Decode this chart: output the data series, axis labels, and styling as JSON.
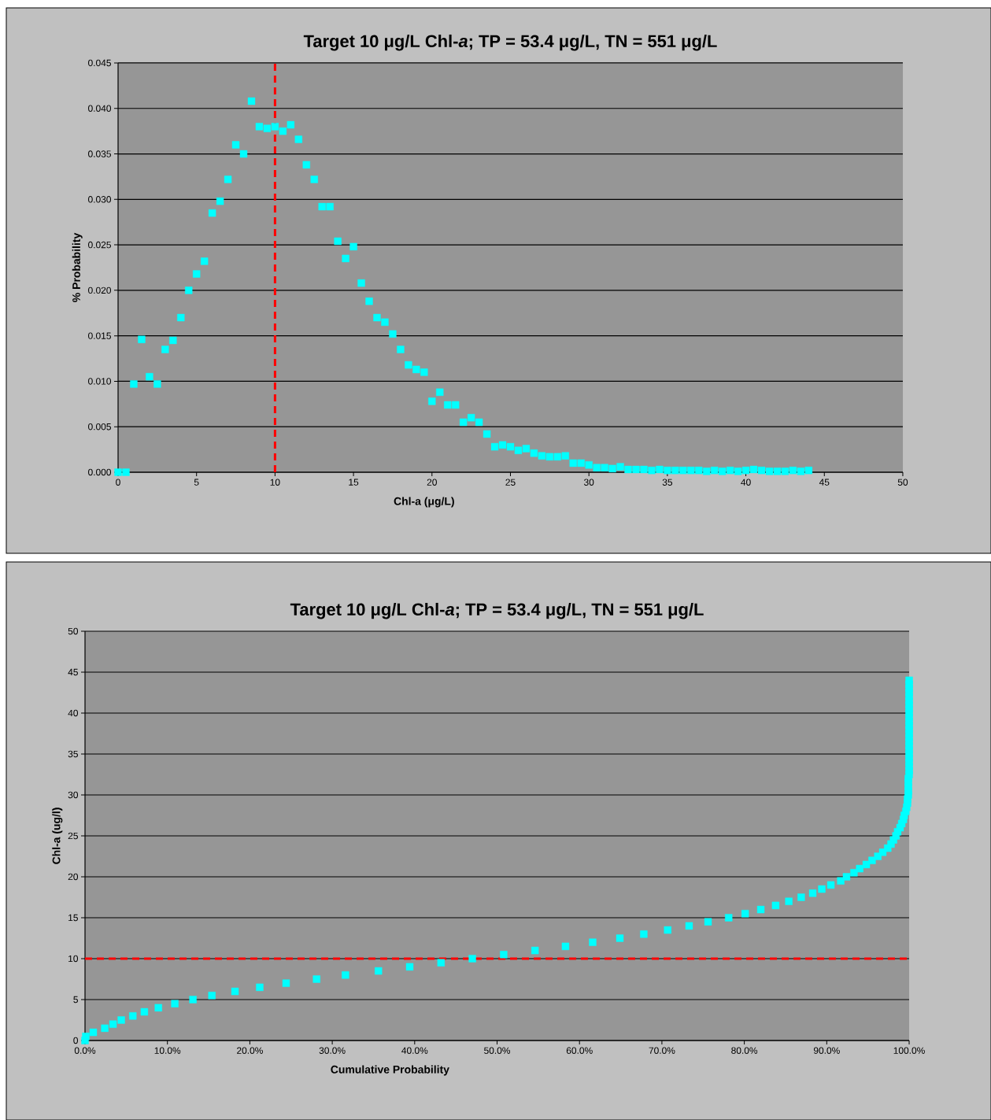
{
  "chart_data": [
    {
      "type": "scatter",
      "title": "Target 10 μg/L Chl-*a*; TP = 53.4 μg/L, TN = 551 μg/L",
      "xlabel": "Chl-a (μg/L)",
      "ylabel": "% Probability",
      "xlim": [
        0,
        50
      ],
      "xticks": [
        0,
        5,
        10,
        15,
        20,
        25,
        30,
        35,
        40,
        45,
        50
      ],
      "ylim": [
        0,
        0.045
      ],
      "yticks": [
        {
          "value": 0,
          "label": "0.000"
        },
        {
          "value": 0.005,
          "label": "0.005"
        },
        {
          "value": 0.01,
          "label": "0.010"
        },
        {
          "value": 0.015,
          "label": "0.015"
        },
        {
          "value": 0.02,
          "label": "0.020"
        },
        {
          "value": 0.025,
          "label": "0.025"
        },
        {
          "value": 0.03,
          "label": "0.030"
        },
        {
          "value": 0.035,
          "label": "0.035"
        },
        {
          "value": 0.04,
          "label": "0.040"
        },
        {
          "value": 0.045,
          "label": "0.045"
        }
      ],
      "grid": "y",
      "marker": "square",
      "ref_lines": [
        {
          "axis": "x",
          "value": 10,
          "color": "#ff0000",
          "line_style": "dashed"
        }
      ],
      "series": [
        {
          "color": "#00ffff",
          "x": [
            0,
            0.5,
            1,
            1.5,
            2,
            2.5,
            3,
            3.5,
            4,
            4.5,
            5,
            5.5,
            6,
            6.5,
            7,
            7.5,
            8,
            8.5,
            9,
            9.5,
            10,
            10.5,
            11,
            11.5,
            12,
            12.5,
            13,
            13.5,
            14,
            14.5,
            15,
            15.5,
            16,
            16.5,
            17,
            17.5,
            18,
            18.5,
            19,
            19.5,
            20,
            20.5,
            21,
            21.5,
            22,
            22.5,
            23,
            23.5,
            24,
            24.5,
            25,
            25.5,
            26,
            26.5,
            27,
            27.5,
            28,
            28.5,
            29,
            29.5,
            30,
            30.5,
            31,
            31.5,
            32,
            32.5,
            33,
            33.5,
            34,
            34.5,
            35,
            35.5,
            36,
            36.5,
            37,
            37.5,
            38,
            38.5,
            39,
            39.5,
            40,
            40.5,
            41,
            41.5,
            42,
            42.5,
            43,
            43.5,
            44
          ],
          "values": [
            0,
            0,
            0.0097,
            0.0146,
            0.0105,
            0.0097,
            0.0135,
            0.0145,
            0.017,
            0.02,
            0.0218,
            0.0232,
            0.0285,
            0.0298,
            0.0322,
            0.036,
            0.035,
            0.0408,
            0.038,
            0.0378,
            0.038,
            0.0375,
            0.0382,
            0.0366,
            0.0338,
            0.0322,
            0.0292,
            0.0292,
            0.0254,
            0.0235,
            0.0248,
            0.0208,
            0.0188,
            0.017,
            0.0165,
            0.0152,
            0.0135,
            0.0118,
            0.0113,
            0.011,
            0.0078,
            0.0088,
            0.0074,
            0.0074,
            0.0055,
            0.006,
            0.0055,
            0.0042,
            0.0028,
            0.003,
            0.0028,
            0.0024,
            0.0026,
            0.0021,
            0.0018,
            0.0017,
            0.0017,
            0.0018,
            0.001,
            0.001,
            0.0008,
            0.0005,
            0.0005,
            0.0004,
            0.0006,
            0.0003,
            0.0003,
            0.0003,
            0.0002,
            0.0003,
            0.0002,
            0.0002,
            0.0002,
            0.0002,
            0.0002,
            0.0001,
            0.0002,
            0.0001,
            0.0002,
            0.0001,
            0.0002,
            0.0003,
            0.0002,
            0.0001,
            0.0001,
            0.0001,
            0.0002,
            0.0001,
            0.0002
          ]
        }
      ]
    },
    {
      "type": "scatter",
      "title": "Target 10 μg/L Chl-*a*; TP = 53.4 μg/L, TN = 551 μg/L",
      "xlabel": "Cumulative Probability",
      "ylabel": "Chl-a (ug/l)",
      "xlim": [
        0,
        100
      ],
      "xticks": [
        {
          "value": 0,
          "label": "0.0%"
        },
        {
          "value": 10,
          "label": "10.0%"
        },
        {
          "value": 20,
          "label": "20.0%"
        },
        {
          "value": 30,
          "label": "30.0%"
        },
        {
          "value": 40,
          "label": "40.0%"
        },
        {
          "value": 50,
          "label": "50.0%"
        },
        {
          "value": 60,
          "label": "60.0%"
        },
        {
          "value": 70,
          "label": "70.0%"
        },
        {
          "value": 80,
          "label": "80.0%"
        },
        {
          "value": 90,
          "label": "90.0%"
        },
        {
          "value": 100,
          "label": "100.0%"
        }
      ],
      "ylim": [
        0,
        50
      ],
      "yticks": [
        0,
        5,
        10,
        15,
        20,
        25,
        30,
        35,
        40,
        45,
        50
      ],
      "grid": "y",
      "marker": "square",
      "ref_lines": [
        {
          "axis": "y",
          "value": 10,
          "color": "#ff0000",
          "line_style": "dashed"
        }
      ],
      "series": [
        {
          "color": "#00ffff",
          "x": [
            0,
            0.1,
            1.0,
            2.4,
            3.4,
            4.4,
            5.8,
            7.2,
            8.9,
            10.9,
            13.1,
            15.4,
            18.2,
            21.2,
            24.4,
            28.1,
            31.6,
            35.6,
            39.4,
            43.2,
            47.0,
            50.8,
            54.6,
            58.3,
            61.6,
            64.9,
            67.8,
            70.7,
            73.3,
            75.6,
            78.1,
            80.1,
            82.0,
            83.8,
            85.4,
            86.9,
            88.3,
            89.4,
            90.5,
            91.7,
            92.4,
            93.3,
            94.0,
            94.8,
            95.5,
            96.2,
            96.8,
            97.4,
            97.8,
            98.1,
            98.4,
            98.6,
            98.9,
            99.1,
            99.3,
            99.4,
            99.6,
            99.7,
            99.8,
            99.8,
            99.9,
            99.9,
            99.9,
            99.9,
            99.9,
            100,
            100,
            100,
            100,
            100,
            100,
            100,
            100,
            100,
            100,
            100,
            100,
            100,
            100,
            100,
            100,
            100,
            100,
            100,
            100,
            100,
            100,
            100,
            100
          ],
          "values": [
            0,
            0.5,
            1,
            1.5,
            2,
            2.5,
            3,
            3.5,
            4,
            4.5,
            5,
            5.5,
            6,
            6.5,
            7,
            7.5,
            8,
            8.5,
            9,
            9.5,
            10,
            10.5,
            11,
            11.5,
            12,
            12.5,
            13,
            13.5,
            14,
            14.5,
            15,
            15.5,
            16,
            16.5,
            17,
            17.5,
            18,
            18.5,
            19,
            19.5,
            20,
            20.5,
            21,
            21.5,
            22,
            22.5,
            23,
            23.5,
            24,
            24.5,
            25,
            25.5,
            26,
            26.5,
            27,
            27.5,
            28,
            28.5,
            29,
            29.5,
            30,
            30.5,
            31,
            31.5,
            32,
            32.5,
            33,
            33.5,
            34,
            34.5,
            35,
            35.5,
            36,
            36.5,
            37,
            37.5,
            38,
            38.5,
            39,
            39.5,
            40,
            40.5,
            41,
            41.5,
            42,
            42.5,
            43,
            43.5,
            44
          ]
        }
      ]
    }
  ]
}
